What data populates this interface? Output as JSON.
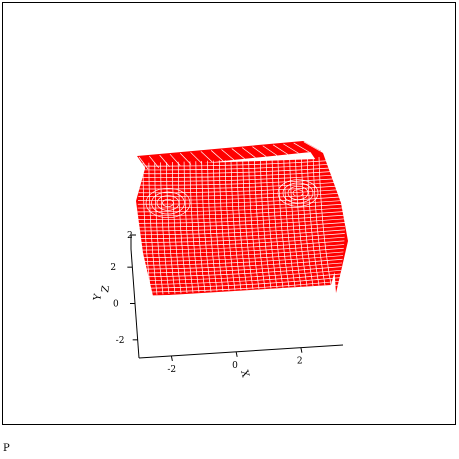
{
  "chart_data": {
    "type": "surface3d",
    "surface_color": "#ff0000",
    "axes": {
      "x": {
        "label": "X",
        "ticks": [
          -2,
          0,
          2
        ]
      },
      "y": {
        "label": "Y",
        "ticks": [
          -2,
          0,
          2
        ]
      },
      "z": {
        "label": "Z",
        "ticks": [
          2
        ]
      }
    },
    "grid": false,
    "legend": "none"
  },
  "caption": "P"
}
